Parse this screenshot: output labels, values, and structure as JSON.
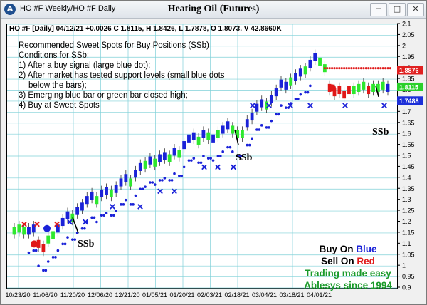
{
  "window": {
    "title": "HO #F Weekly/HO #F Daily",
    "chart_title": "Heating Oil (Futures)",
    "controls": {
      "minimize": "─",
      "maximize": "□",
      "close": "✕"
    },
    "icon": "ablesys-logo-icon"
  },
  "info_line": "HO #F [Daily] 04/12/21 +0.0026 C 1.8115, H 1.8426, L 1.7878, O 1.8073, V 42.8660K",
  "notes": {
    "heading": "Recommended Sweet Spots for Buy Positions (SSb)",
    "subheading": "Conditions for SSb:",
    "items": [
      "1) After a buy signal (large blue dot);",
      "2) After market has tested support levels (small blue dots below the bars);",
      "3) Emerging blue bar or green bar closed high;",
      "4) Buy at Sweet Spots"
    ]
  },
  "legend": {
    "line1": "Buy On Blue",
    "line2": "Sell On Red",
    "line3": "Trading made easy",
    "line4": "Ablesys since 1994"
  },
  "annotations": [
    "SSb",
    "SSb",
    "SSb"
  ],
  "price_tags": [
    {
      "value": "1.8876",
      "color": "#e02020"
    },
    {
      "value": "1.8115",
      "color": "#2ad02a"
    },
    {
      "value": "1.7488",
      "color": "#1c2fd8"
    }
  ],
  "colors": {
    "blue": "#1a22d8",
    "green": "#2ee82e",
    "red": "#e01818",
    "grid": "#7fd0d8",
    "text_green": "#1a9a2a"
  },
  "chart_data": {
    "type": "candlestick",
    "symbol": "HO #F",
    "timeframe": "Daily",
    "title": "Heating Oil (Futures)",
    "x_tick_labels": [
      "10/23/20",
      "11/06/20",
      "11/20/20",
      "12/06/20",
      "12/21/20",
      "01/05/21",
      "01/20/21",
      "02/03/21",
      "02/18/21",
      "03/04/21",
      "03/18/21",
      "04/01/21"
    ],
    "y_tick_labels": [
      "0.9",
      "0.95",
      "1",
      "1.05",
      "1.1",
      "1.15",
      "1.2",
      "1.25",
      "1.3",
      "1.35",
      "1.4",
      "1.45",
      "1.5",
      "1.55",
      "1.6",
      "1.65",
      "1.7",
      "1.75",
      "1.8",
      "1.85",
      "1.9",
      "1.95",
      "2",
      "2.05",
      "2.1"
    ],
    "ylim": [
      0.9,
      2.1
    ],
    "grid": true,
    "bars": [
      {
        "c": "green",
        "v": 1.16
      },
      {
        "c": "green",
        "v": 1.17
      },
      {
        "c": "green",
        "v": 1.16
      },
      {
        "c": "blue",
        "v": 1.16
      },
      {
        "c": "blue",
        "v": 1.17
      },
      {
        "c": "red",
        "v": 1.1
      },
      {
        "c": "red",
        "v": 1.08
      },
      {
        "c": "green",
        "v": 1.12
      },
      {
        "c": "green",
        "v": 1.14
      },
      {
        "c": "blue",
        "v": 1.17
      },
      {
        "c": "blue",
        "v": 1.2
      },
      {
        "c": "blue",
        "v": 1.23
      },
      {
        "c": "green",
        "v": 1.22
      },
      {
        "c": "blue",
        "v": 1.25
      },
      {
        "c": "blue",
        "v": 1.27
      },
      {
        "c": "blue",
        "v": 1.3
      },
      {
        "c": "blue",
        "v": 1.32
      },
      {
        "c": "green",
        "v": 1.3
      },
      {
        "c": "blue",
        "v": 1.33
      },
      {
        "c": "blue",
        "v": 1.34
      },
      {
        "c": "green",
        "v": 1.33
      },
      {
        "c": "blue",
        "v": 1.35
      },
      {
        "c": "blue",
        "v": 1.38
      },
      {
        "c": "blue",
        "v": 1.4
      },
      {
        "c": "green",
        "v": 1.38
      },
      {
        "c": "blue",
        "v": 1.42
      },
      {
        "c": "blue",
        "v": 1.45
      },
      {
        "c": "green",
        "v": 1.46
      },
      {
        "c": "blue",
        "v": 1.48
      },
      {
        "c": "green",
        "v": 1.47
      },
      {
        "c": "blue",
        "v": 1.49
      },
      {
        "c": "blue",
        "v": 1.5
      },
      {
        "c": "green",
        "v": 1.49
      },
      {
        "c": "blue",
        "v": 1.52
      },
      {
        "c": "green",
        "v": 1.51
      },
      {
        "c": "blue",
        "v": 1.55
      },
      {
        "c": "blue",
        "v": 1.58
      },
      {
        "c": "blue",
        "v": 1.59
      },
      {
        "c": "green",
        "v": 1.57
      },
      {
        "c": "blue",
        "v": 1.6
      },
      {
        "c": "green",
        "v": 1.59
      },
      {
        "c": "blue",
        "v": 1.58
      },
      {
        "c": "green",
        "v": 1.6
      },
      {
        "c": "blue",
        "v": 1.62
      },
      {
        "c": "blue",
        "v": 1.64
      },
      {
        "c": "green",
        "v": 1.62
      },
      {
        "c": "green",
        "v": 1.6
      },
      {
        "c": "green",
        "v": 1.6
      },
      {
        "c": "blue",
        "v": 1.65
      },
      {
        "c": "blue",
        "v": 1.68
      },
      {
        "c": "blue",
        "v": 1.72
      },
      {
        "c": "blue",
        "v": 1.74
      },
      {
        "c": "green",
        "v": 1.73
      },
      {
        "c": "blue",
        "v": 1.76
      },
      {
        "c": "blue",
        "v": 1.79
      },
      {
        "c": "blue",
        "v": 1.83
      },
      {
        "c": "blue",
        "v": 1.82
      },
      {
        "c": "green",
        "v": 1.84
      },
      {
        "c": "blue",
        "v": 1.86
      },
      {
        "c": "blue",
        "v": 1.88
      },
      {
        "c": "green",
        "v": 1.89
      },
      {
        "c": "blue",
        "v": 1.92
      },
      {
        "c": "blue",
        "v": 1.95
      },
      {
        "c": "green",
        "v": 1.93
      },
      {
        "c": "green",
        "v": 1.9
      },
      {
        "c": "red",
        "v": 1.81
      },
      {
        "c": "red",
        "v": 1.79
      },
      {
        "c": "red",
        "v": 1.8
      },
      {
        "c": "red",
        "v": 1.78
      },
      {
        "c": "red",
        "v": 1.8
      },
      {
        "c": "green",
        "v": 1.8
      },
      {
        "c": "green",
        "v": 1.81
      },
      {
        "c": "green",
        "v": 1.82
      },
      {
        "c": "red",
        "v": 1.8
      },
      {
        "c": "green",
        "v": 1.81
      },
      {
        "c": "green",
        "v": 1.81
      },
      {
        "c": "green",
        "v": 1.82
      },
      {
        "c": "blue",
        "v": 1.81
      }
    ]
  }
}
